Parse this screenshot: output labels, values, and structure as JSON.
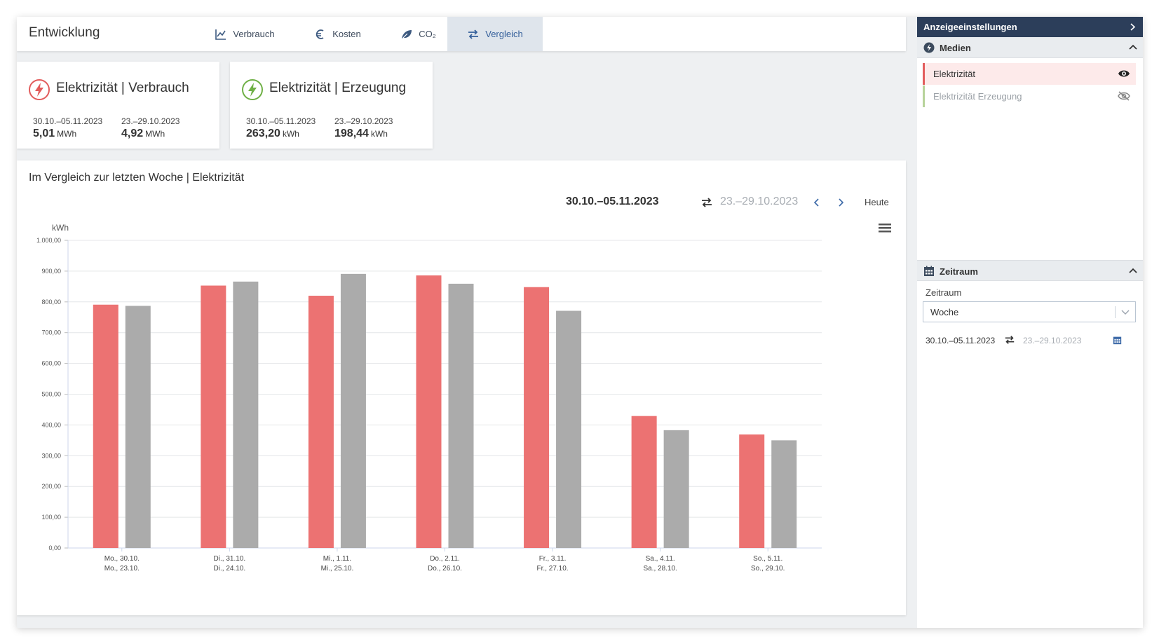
{
  "header": {
    "title": "Entwicklung",
    "tabs": [
      {
        "label": "Verbrauch",
        "icon": "line-chart-icon"
      },
      {
        "label": "Kosten",
        "icon": "euro-icon"
      },
      {
        "label": "CO₂",
        "icon": "leaf-icon"
      },
      {
        "label": "Vergleich",
        "icon": "swap-arrows-icon",
        "active": true
      }
    ]
  },
  "cards": [
    {
      "icon": "lightning-icon",
      "icon_color": "#e25c5c",
      "title": "Elektrizität | Verbrauch",
      "current": {
        "period": "30.10.–05.11.2023",
        "value": "5,01",
        "unit": "MWh"
      },
      "previous": {
        "period": "23.–29.10.2023",
        "value": "4,92",
        "unit": "MWh"
      }
    },
    {
      "icon": "lightning-icon",
      "icon_color": "#6fb046",
      "title": "Elektrizität | Erzeugung",
      "current": {
        "period": "30.10.–05.11.2023",
        "value": "263,20",
        "unit": "kWh"
      },
      "previous": {
        "period": "23.–29.10.2023",
        "value": "198,44",
        "unit": "kWh"
      }
    }
  ],
  "chart_panel": {
    "title": "Im Vergleich zur letzten Woche | Elektrizität",
    "current_range": "30.10.–05.11.2023",
    "compare_range": "23.–29.10.2023",
    "today_label": "Heute"
  },
  "chart_data": {
    "type": "bar",
    "ylabel": "kWh",
    "ylim": [
      0,
      1000
    ],
    "yticks": [
      "0,00",
      "100,00",
      "200,00",
      "300,00",
      "400,00",
      "500,00",
      "600,00",
      "700,00",
      "800,00",
      "900,00",
      "1.000,00"
    ],
    "categories": [
      [
        "Mo., 30.10.",
        "Mo., 23.10."
      ],
      [
        "Di., 31.10.",
        "Di., 24.10."
      ],
      [
        "Mi., 1.11.",
        "Mi., 25.10."
      ],
      [
        "Do., 2.11.",
        "Do., 26.10."
      ],
      [
        "Fr., 3.11.",
        "Fr., 27.10."
      ],
      [
        "Sa., 4.11.",
        "Sa., 28.10."
      ],
      [
        "So., 5.11.",
        "So., 29.10."
      ]
    ],
    "series": [
      {
        "color": "#ec7272",
        "values": [
          791,
          853,
          820,
          886,
          848,
          429,
          369
        ]
      },
      {
        "color": "#ababab",
        "values": [
          787,
          866,
          891,
          859,
          771,
          383,
          350
        ]
      }
    ],
    "grid": true
  },
  "sidebar": {
    "header": "Anzeigeeinstellungen",
    "media_section": "Medien",
    "media": [
      {
        "label": "Elektrizität",
        "color": "#e25c5c",
        "visible": true
      },
      {
        "label": "Elektrizität Erzeugung",
        "color": "#b7d39a",
        "visible": false
      }
    ],
    "period_section": "Zeitraum",
    "period_label": "Zeitraum",
    "period_value": "Woche",
    "current_range": "30.10.–05.11.2023",
    "compare_range": "23.–29.10.2023"
  }
}
